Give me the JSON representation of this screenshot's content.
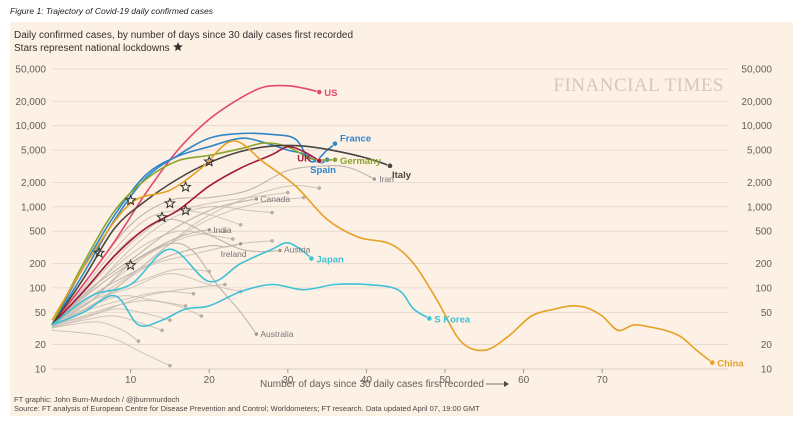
{
  "figure_caption": "Figure 1: Trajectory of Covid-19 daily confirmed cases",
  "watermark": "FINANCIAL TIMES",
  "credit": "FT graphic: John Burn-Murdoch / @jburnmurdoch",
  "source": "Source: FT analysis of European Centre for Disease Prevention and Control; Worldometers; FT research. Data updated April 07, 19:00 GMT",
  "colors": {
    "background": "#fdf0e4",
    "grid": "#e3d6ca",
    "US": "#e3496a",
    "France": "#2e86c9",
    "Spain": "#2e86c9",
    "Germany": "#8aa52d",
    "UK": "#a3193b",
    "Italy": "#4a4442",
    "Japan": "#3fc1d6",
    "S Korea": "#3fc1d6",
    "China": "#e6a024",
    "grey": "#c7bdb3"
  },
  "chart_data": {
    "type": "line",
    "title": "Daily confirmed cases, by number of days since 30 daily cases first recorded",
    "subtitle": "Stars represent national lockdowns",
    "xlabel": "Number of days since 30 daily cases first recorded",
    "ylabel": "",
    "y_scale": "log",
    "xlim": [
      0,
      86
    ],
    "ylim": [
      10,
      50000
    ],
    "x_ticks": [
      10,
      20,
      30,
      40,
      50,
      60,
      70
    ],
    "y_ticks": [
      10,
      20,
      50,
      100,
      200,
      500,
      1000,
      2000,
      5000,
      10000,
      20000,
      50000
    ],
    "y_tick_labels": [
      "10",
      "20",
      "50",
      "100",
      "200",
      "500",
      "1,000",
      "2,000",
      "5,000",
      "10,000",
      "20,000",
      "50,000"
    ],
    "series": [
      {
        "name": "US",
        "highlight": true,
        "x": [
          0,
          4,
          8,
          12,
          16,
          20,
          24,
          27,
          30,
          32,
          34
        ],
        "values": [
          35,
          110,
          380,
          1500,
          5000,
          12000,
          22000,
          30000,
          31000,
          29000,
          26000
        ]
      },
      {
        "name": "France",
        "highlight": true,
        "x": [
          0,
          4,
          8,
          12,
          16,
          20,
          24,
          28,
          31,
          33,
          35,
          36
        ],
        "values": [
          35,
          150,
          700,
          2300,
          4300,
          7000,
          8000,
          7800,
          6800,
          3600,
          5000,
          6000
        ]
      },
      {
        "name": "Spain",
        "highlight": true,
        "x": [
          0,
          4,
          8,
          12,
          16,
          20,
          24,
          27,
          30,
          32,
          34,
          35
        ],
        "values": [
          35,
          180,
          800,
          2500,
          4200,
          5500,
          7000,
          6200,
          5000,
          4500,
          3500,
          3800
        ]
      },
      {
        "name": "Germany",
        "highlight": true,
        "x": [
          0,
          4,
          8,
          12,
          16,
          20,
          24,
          27,
          30,
          33,
          36
        ],
        "values": [
          35,
          200,
          900,
          2200,
          3700,
          4300,
          5200,
          6100,
          5500,
          3900,
          3800
        ]
      },
      {
        "name": "UK",
        "highlight": true,
        "x": [
          0,
          4,
          8,
          12,
          16,
          20,
          24,
          28,
          30,
          32,
          34
        ],
        "values": [
          35,
          90,
          250,
          550,
          900,
          1800,
          3000,
          4400,
          5500,
          4800,
          3700
        ]
      },
      {
        "name": "Italy",
        "highlight": true,
        "x": [
          0,
          4,
          8,
          12,
          16,
          20,
          24,
          28,
          32,
          36,
          40,
          43
        ],
        "values": [
          35,
          130,
          550,
          1200,
          2200,
          3500,
          4800,
          5600,
          5600,
          4900,
          4000,
          3200
        ]
      },
      {
        "name": "Japan",
        "highlight": true,
        "x": [
          0,
          5,
          10,
          15,
          20,
          24,
          28,
          30,
          32,
          33
        ],
        "values": [
          35,
          80,
          110,
          300,
          120,
          200,
          300,
          360,
          280,
          230
        ]
      },
      {
        "name": "S Korea",
        "highlight": true,
        "x": [
          0,
          4,
          8,
          11,
          14,
          17,
          20,
          24,
          28,
          32,
          36,
          40,
          44,
          46,
          48
        ],
        "values": [
          35,
          50,
          80,
          35,
          40,
          55,
          60,
          90,
          110,
          95,
          110,
          110,
          95,
          55,
          42
        ]
      },
      {
        "name": "China",
        "highlight": true,
        "x": [
          0,
          5,
          10,
          15,
          19,
          23,
          27,
          31,
          35,
          39,
          43,
          46,
          49,
          52,
          55,
          58,
          61,
          64,
          66,
          68,
          70,
          72,
          74,
          76,
          78,
          80,
          82,
          84
        ],
        "values": [
          40,
          250,
          1100,
          1600,
          3000,
          6500,
          3500,
          1800,
          700,
          420,
          350,
          200,
          70,
          22,
          17,
          25,
          45,
          55,
          60,
          57,
          45,
          30,
          35,
          33,
          30,
          25,
          17,
          12
        ]
      },
      {
        "name": "Iran",
        "highlight": false,
        "x": [
          0,
          5,
          10,
          15,
          20,
          25,
          30,
          35,
          38,
          41
        ],
        "values": [
          35,
          150,
          600,
          1200,
          1300,
          1600,
          2800,
          3200,
          3000,
          2200
        ]
      },
      {
        "name": "Canada",
        "highlight": false,
        "x": [
          0,
          5,
          10,
          15,
          20,
          23,
          26
        ],
        "values": [
          35,
          100,
          220,
          500,
          900,
          1100,
          1250
        ]
      },
      {
        "name": "India",
        "highlight": false,
        "x": [
          0,
          5,
          10,
          15,
          18,
          20
        ],
        "values": [
          35,
          70,
          200,
          380,
          480,
          520
        ]
      },
      {
        "name": "Ireland",
        "highlight": false,
        "x": [
          0,
          5,
          10,
          15,
          20,
          22,
          24
        ],
        "values": [
          35,
          80,
          150,
          250,
          330,
          320,
          350
        ]
      },
      {
        "name": "Austria",
        "highlight": false,
        "x": [
          0,
          5,
          10,
          15,
          20,
          24,
          27,
          29
        ],
        "values": [
          35,
          120,
          400,
          700,
          450,
          300,
          280,
          290
        ]
      },
      {
        "name": "Australia",
        "highlight": false,
        "x": [
          0,
          5,
          10,
          15,
          18,
          21,
          24,
          26
        ],
        "values": [
          35,
          90,
          200,
          350,
          280,
          110,
          50,
          27
        ]
      }
    ],
    "background_series": [
      {
        "x": [
          0,
          6,
          12,
          18,
          24,
          30,
          34
        ],
        "values": [
          32,
          80,
          200,
          600,
          1200,
          1800,
          1700
        ]
      },
      {
        "x": [
          0,
          5,
          10,
          15,
          20,
          26,
          32
        ],
        "values": [
          34,
          60,
          140,
          350,
          700,
          1100,
          1300
        ]
      },
      {
        "x": [
          0,
          4,
          8,
          12,
          16,
          20,
          24
        ],
        "values": [
          36,
          100,
          300,
          700,
          900,
          800,
          600
        ]
      },
      {
        "x": [
          0,
          4,
          8,
          12,
          16,
          20
        ],
        "values": [
          33,
          50,
          90,
          130,
          170,
          160
        ]
      },
      {
        "x": [
          0,
          5,
          10,
          15,
          20,
          24
        ],
        "values": [
          35,
          70,
          100,
          150,
          110,
          90
        ]
      },
      {
        "x": [
          0,
          4,
          8,
          12,
          16,
          19
        ],
        "values": [
          34,
          45,
          60,
          70,
          60,
          45
        ]
      },
      {
        "x": [
          0,
          4,
          8,
          12,
          14
        ],
        "values": [
          33,
          40,
          45,
          35,
          30
        ]
      },
      {
        "x": [
          0,
          3,
          6,
          9,
          11
        ],
        "values": [
          32,
          36,
          38,
          30,
          22
        ]
      },
      {
        "x": [
          0,
          5,
          10,
          15,
          20,
          25,
          30
        ],
        "values": [
          35,
          110,
          350,
          800,
          1100,
          1300,
          1500
        ]
      },
      {
        "x": [
          0,
          4,
          8,
          12,
          16,
          20,
          23
        ],
        "values": [
          34,
          80,
          180,
          350,
          500,
          450,
          400
        ]
      },
      {
        "x": [
          0,
          5,
          10,
          14,
          18
        ],
        "values": [
          33,
          55,
          75,
          90,
          85
        ]
      },
      {
        "x": [
          0,
          6,
          12,
          17,
          22
        ],
        "values": [
          35,
          90,
          250,
          420,
          500
        ]
      },
      {
        "x": [
          0,
          4,
          8,
          12,
          15
        ],
        "values": [
          32,
          42,
          55,
          48,
          40
        ]
      },
      {
        "x": [
          0,
          6,
          12,
          18,
          24,
          28
        ],
        "values": [
          34,
          70,
          180,
          260,
          350,
          380
        ]
      },
      {
        "x": [
          0,
          5,
          10,
          15,
          20,
          25,
          28
        ],
        "values": [
          35,
          95,
          300,
          700,
          1000,
          900,
          850
        ]
      },
      {
        "x": [
          0,
          5,
          9,
          13,
          17
        ],
        "values": [
          33,
          60,
          80,
          70,
          60
        ]
      },
      {
        "x": [
          0,
          6,
          12,
          18,
          22
        ],
        "values": [
          34,
          50,
          80,
          100,
          110
        ]
      },
      {
        "x": [
          0,
          7,
          12,
          15
        ],
        "values": [
          30,
          25,
          15,
          11
        ]
      }
    ],
    "annotations": [
      {
        "label": "US",
        "series": "US",
        "x": 34,
        "value": 26000,
        "dx": 5,
        "dy": 4
      },
      {
        "label": "France",
        "series": "France",
        "x": 36,
        "value": 6000,
        "dx": 5,
        "dy": -2
      },
      {
        "label": "Germany",
        "series": "Germany",
        "x": 36,
        "value": 3800,
        "dx": 5,
        "dy": 4
      },
      {
        "label": "UK",
        "series": "UK",
        "x": 34,
        "value": 3700,
        "dx": -22,
        "dy": 1
      },
      {
        "label": "Spain",
        "series": "Spain",
        "x": 35,
        "value": 3800,
        "dx": -17,
        "dy": 13
      },
      {
        "label": "Italy",
        "series": "Italy",
        "x": 43,
        "value": 3200,
        "dx": 2,
        "dy": 12
      },
      {
        "label": "Japan",
        "series": "Japan",
        "x": 33,
        "value": 230,
        "dx": 5,
        "dy": 4
      },
      {
        "label": "S Korea",
        "series": "S Korea",
        "x": 48,
        "value": 42,
        "dx": 5,
        "dy": 4
      },
      {
        "label": "China",
        "series": "China",
        "x": 84,
        "value": 12,
        "dx": 5,
        "dy": 4
      },
      {
        "label": "Iran",
        "series": "Iran",
        "x": 41,
        "value": 2200,
        "dx": 5,
        "dy": 3
      },
      {
        "label": "Canada",
        "series": "Canada",
        "x": 26,
        "value": 1250,
        "dx": 4,
        "dy": 3
      },
      {
        "label": "India",
        "series": "India",
        "x": 20,
        "value": 520,
        "dx": 4,
        "dy": 3
      },
      {
        "label": "Ireland",
        "series": "Ireland",
        "x": 24,
        "value": 350,
        "dx": -20,
        "dy": 13
      },
      {
        "label": "Austria",
        "series": "Austria",
        "x": 29,
        "value": 290,
        "dx": 4,
        "dy": 2
      },
      {
        "label": "Australia",
        "series": "Australia",
        "x": 26,
        "value": 27,
        "dx": 4,
        "dy": 3
      }
    ],
    "lockdowns": [
      {
        "x": 6,
        "value": 270
      },
      {
        "x": 10,
        "value": 1200
      },
      {
        "x": 10,
        "value": 190
      },
      {
        "x": 14,
        "value": 740
      },
      {
        "x": 15,
        "value": 1100
      },
      {
        "x": 17,
        "value": 1750
      },
      {
        "x": 17,
        "value": 900
      },
      {
        "x": 20,
        "value": 3600
      }
    ]
  }
}
